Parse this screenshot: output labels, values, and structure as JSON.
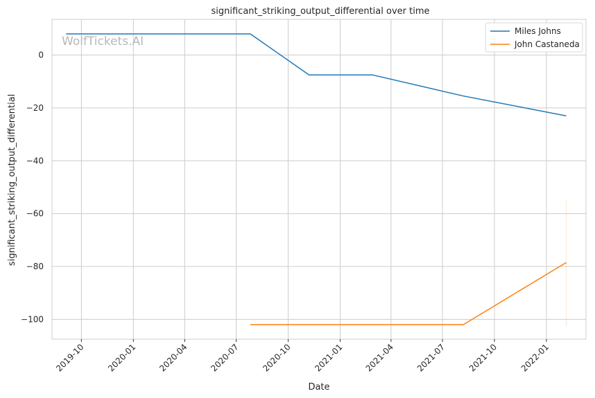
{
  "chart_data": {
    "type": "line",
    "title": "significant_striking_output_differential over time",
    "xlabel": "Date",
    "ylabel": "significant_striking_output_differential",
    "watermark": "WolfTickets.AI",
    "xlim": [
      "2019-08-10",
      "2022-03-12"
    ],
    "ylim": [
      -107.5,
      13.5
    ],
    "x_ticks": [
      "2019-10",
      "2020-01",
      "2020-04",
      "2020-07",
      "2020-10",
      "2021-01",
      "2021-04",
      "2021-07",
      "2021-10",
      "2022-01"
    ],
    "y_ticks": [
      0,
      -20,
      -40,
      -60,
      -80,
      -100
    ],
    "y_tick_labels": [
      "0",
      "−20",
      "−40",
      "−60",
      "−80",
      "−100"
    ],
    "grid": true,
    "legend_position": "top-right",
    "series": [
      {
        "name": "Miles Johns",
        "color": "#1f77b4",
        "points": [
          {
            "x": "2019-09-04",
            "y": 8.0
          },
          {
            "x": "2020-07-26",
            "y": 8.0
          },
          {
            "x": "2020-11-07",
            "y": -7.5
          },
          {
            "x": "2021-02-27",
            "y": -7.5
          },
          {
            "x": "2021-08-07",
            "y": -15.5
          },
          {
            "x": "2022-02-05",
            "y": -23.0
          }
        ]
      },
      {
        "name": "John Castaneda",
        "color": "#ff7f0e",
        "points": [
          {
            "x": "2020-07-26",
            "y": -102.0
          },
          {
            "x": "2021-08-07",
            "y": -102.0
          },
          {
            "x": "2022-02-05",
            "y": -78.5
          }
        ],
        "range": {
          "x": "2022-02-05",
          "low": -102.5,
          "high": -55.0
        }
      }
    ]
  }
}
